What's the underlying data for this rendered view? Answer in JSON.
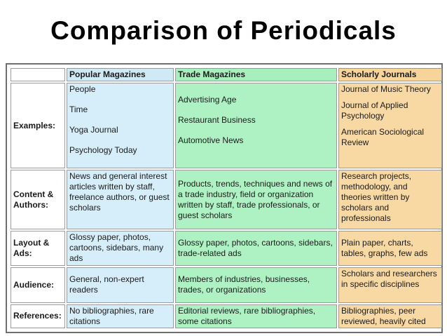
{
  "title": "Comparison of Periodicals",
  "table": {
    "headers": [
      "Popular Magazines",
      "Trade Magazines",
      "Scholarly Journals"
    ],
    "rows": {
      "examples": {
        "label": "Examples:",
        "popular": [
          "People",
          "Time",
          "Yoga Journal",
          "Psychology Today"
        ],
        "trade": [
          "Advertising Age",
          "Restaurant Business",
          "Automotive News"
        ],
        "scholarly": [
          "Journal of Music Theory",
          "Journal of Applied Psychology",
          "American Sociological Review"
        ]
      },
      "content": {
        "label": "Content & Authors:",
        "popular": "News and general interest articles written by staff, freelance authors, or guest scholars",
        "trade": "Products, trends, techniques and news of a trade industry, field or organization written by staff, trade professionals, or guest scholars",
        "scholarly": "Research projects, methodology, and theories written by scholars and professionals"
      },
      "layout": {
        "label": "Layout & Ads:",
        "popular": "Glossy paper, photos, cartoons, sidebars, many ads",
        "trade": "Glossy paper, photos, cartoons, sidebars, trade-related ads",
        "scholarly": "Plain paper, charts, tables, graphs, few ads"
      },
      "audience": {
        "label": "Audience:",
        "popular": "General, non-expert readers",
        "trade": "Members of industries, businesses, trades, or organizations",
        "scholarly": "Scholars and researchers in specific disciplines"
      },
      "references": {
        "label": "References:",
        "popular": "No bibliographies, rare citations",
        "trade": "Editorial reviews, rare bibliographies, some citations",
        "scholarly": "Bibliographies, peer reviewed, heavily cited"
      }
    }
  },
  "colors": {
    "popular": "#d6eef9",
    "trade": "#aef2c4",
    "scholarly": "#f8d9a4"
  }
}
